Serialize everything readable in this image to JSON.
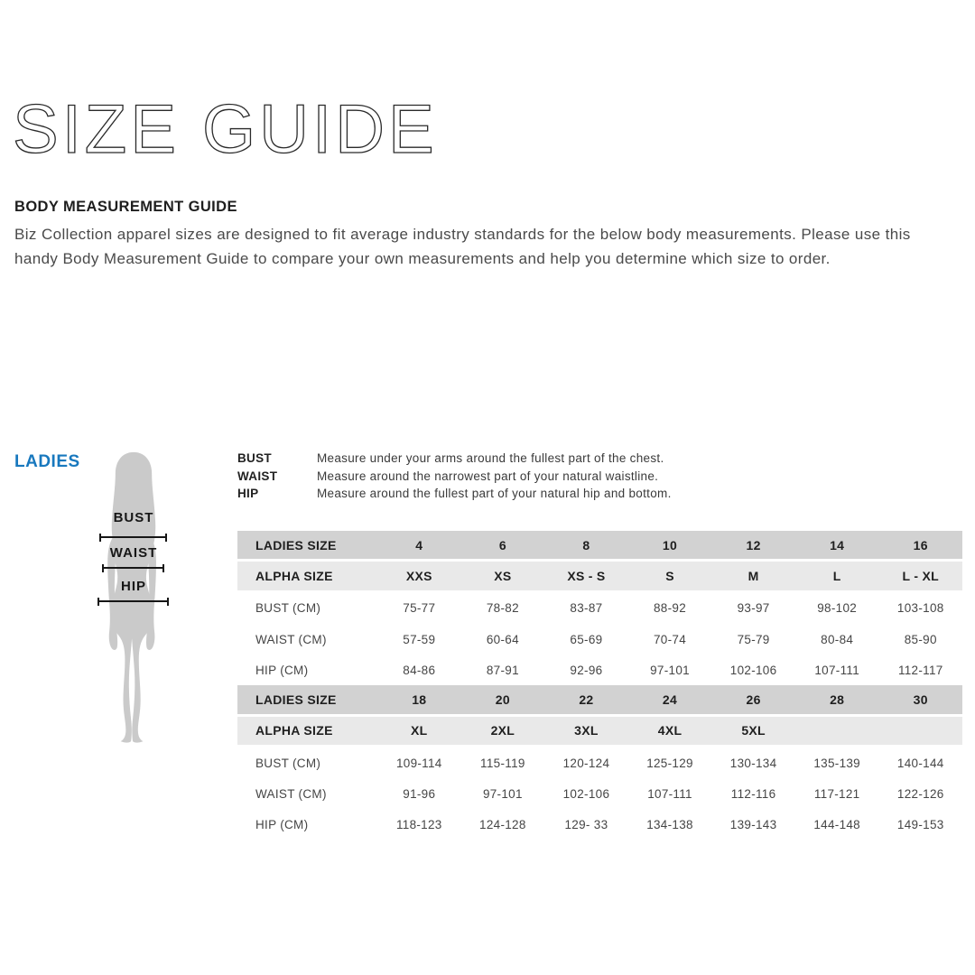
{
  "page": {
    "title": "SIZE GUIDE",
    "section_heading": "BODY MEASUREMENT GUIDE",
    "description": "Biz Collection apparel sizes are designed to fit average industry standards for the below body measurements. Please use this handy Body Measurement Guide to compare your own measurements and help you determine which size to order."
  },
  "category_label": "LADIES",
  "figure_markers": [
    "BUST",
    "WAIST",
    "HIP"
  ],
  "measurements": [
    {
      "label": "BUST",
      "description": "Measure under your arms around the fullest part of the chest."
    },
    {
      "label": "WAIST",
      "description": "Measure around the narrowest part of your natural waistline."
    },
    {
      "label": "HIP",
      "description": "Measure around the fullest part of your natural hip and bottom."
    }
  ],
  "size_table": {
    "sections": [
      {
        "rows": [
          {
            "label": "LADIES SIZE",
            "type": "header",
            "values": [
              "4",
              "6",
              "8",
              "10",
              "12",
              "14",
              "16"
            ]
          },
          {
            "label": "ALPHA SIZE",
            "type": "subheader",
            "values": [
              "XXS",
              "XS",
              "XS - S",
              "S",
              "M",
              "L",
              "L - XL"
            ]
          },
          {
            "label": "BUST (CM)",
            "type": "data",
            "values": [
              "75-77",
              "78-82",
              "83-87",
              "88-92",
              "93-97",
              "98-102",
              "103-108"
            ]
          },
          {
            "label": "WAIST (CM)",
            "type": "data",
            "values": [
              "57-59",
              "60-64",
              "65-69",
              "70-74",
              "75-79",
              "80-84",
              "85-90"
            ]
          },
          {
            "label": "HIP (CM)",
            "type": "data",
            "values": [
              "84-86",
              "87-91",
              "92-96",
              "97-101",
              "102-106",
              "107-111",
              "112-117"
            ]
          }
        ]
      },
      {
        "rows": [
          {
            "label": "LADIES SIZE",
            "type": "header",
            "values": [
              "18",
              "20",
              "22",
              "24",
              "26",
              "28",
              "30"
            ]
          },
          {
            "label": "ALPHA SIZE",
            "type": "subheader",
            "values": [
              "XL",
              "2XL",
              "3XL",
              "4XL",
              "5XL",
              "",
              ""
            ]
          },
          {
            "label": "BUST (CM)",
            "type": "data",
            "values": [
              "109-114",
              "115-119",
              "120-124",
              "125-129",
              "130-134",
              "135-139",
              "140-144"
            ]
          },
          {
            "label": "WAIST (CM)",
            "type": "data",
            "values": [
              "91-96",
              "97-101",
              "102-106",
              "107-111",
              "112-116",
              "117-121",
              "122-126"
            ]
          },
          {
            "label": "HIP (CM)",
            "type": "data",
            "values": [
              "118-123",
              "124-128",
              "129- 33",
              "134-138",
              "139-143",
              "144-148",
              "149-153"
            ]
          }
        ]
      }
    ]
  },
  "colors": {
    "accent_blue": "#1878be",
    "silhouette_gray": "#cacaca",
    "header_row_bg": "#d2d2d2",
    "subheader_row_bg": "#e9e9e9"
  }
}
